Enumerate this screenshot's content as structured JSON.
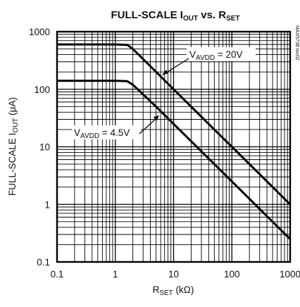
{
  "chart_data": {
    "type": "line",
    "title": {
      "main": "FULL-SCALE I",
      "sub1": "OUT",
      "mid": " vs. R",
      "sub2": "SET"
    },
    "xlabel": {
      "main": "R",
      "sub": "SET",
      "unit": " (kΩ)"
    },
    "ylabel": {
      "main": "FULL-SCALE I",
      "sub": "OUT",
      "unit": " (μA)"
    },
    "x_scale": "log",
    "y_scale": "log",
    "xlim": [
      0.1,
      1000
    ],
    "ylim": [
      0.1,
      1000
    ],
    "x_ticks": [
      0.1,
      1,
      10,
      100,
      1000
    ],
    "x_tick_labels": [
      "0.1",
      "1",
      "10",
      "100",
      "1000"
    ],
    "y_ticks": [
      0.1,
      1,
      10,
      100,
      1000
    ],
    "y_tick_labels": [
      "0.1",
      "1",
      "10",
      "100",
      "1000"
    ],
    "grid": true,
    "legend": "none",
    "figure_code": "MAX5738 toc02",
    "series": [
      {
        "x": [
          0.1,
          0.5,
          1.0,
          1.6,
          2.0,
          5,
          10,
          50,
          100,
          500,
          1000
        ],
        "y": [
          600,
          600,
          600,
          590,
          500,
          200,
          100,
          20,
          10,
          2,
          1
        ]
      },
      {
        "x": [
          0.1,
          0.5,
          1.0,
          1.6,
          2.0,
          5,
          10,
          50,
          100,
          500,
          1000
        ],
        "y": [
          140,
          140,
          140,
          138,
          120,
          50,
          25,
          5,
          2.5,
          0.5,
          0.25
        ]
      }
    ],
    "annotations": [
      {
        "main": "V",
        "sub": "AVDD",
        "rest": " = 20V"
      },
      {
        "main": "V",
        "sub": "AVDD",
        "rest": " = 4.5V"
      }
    ]
  }
}
